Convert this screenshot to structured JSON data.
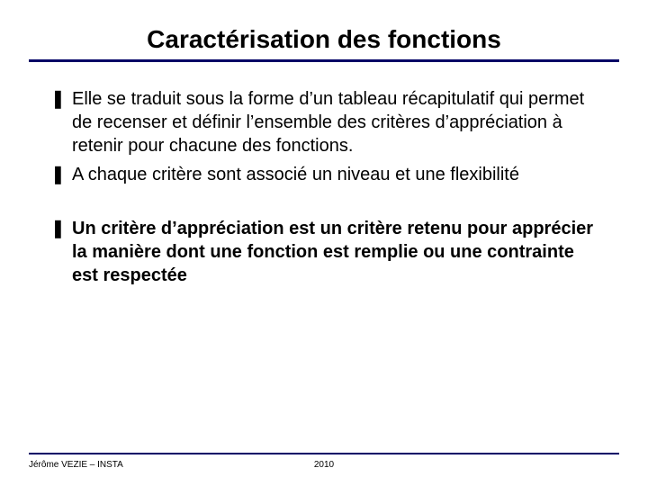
{
  "title": "Caractérisation des fonctions",
  "title_font_family": "Comic Sans MS",
  "title_font_size_pt": 28,
  "title_color": "#000000",
  "rule_color": "#000066",
  "body_font_size_pt": 20,
  "body_color": "#000000",
  "bullet_marker": "❚",
  "bullets": [
    {
      "text": "Elle se traduit sous la forme d’un tableau récapitulatif qui permet de recenser et définir l’ensemble des critères d’appréciation à retenir pour chacune des fonctions.",
      "bold": false
    },
    {
      "text": "A chaque critère sont associé un niveau et une flexibilité",
      "bold": false
    },
    {
      "text": "Un critère d’appréciation est un critère retenu pour apprécier la manière dont une fonction est remplie ou une contrainte est respectée",
      "bold": true,
      "gap_before": true
    }
  ],
  "footer": {
    "author": "Jérôme VEZIE – INSTA",
    "year": "2010",
    "font_size_pt": 10
  }
}
